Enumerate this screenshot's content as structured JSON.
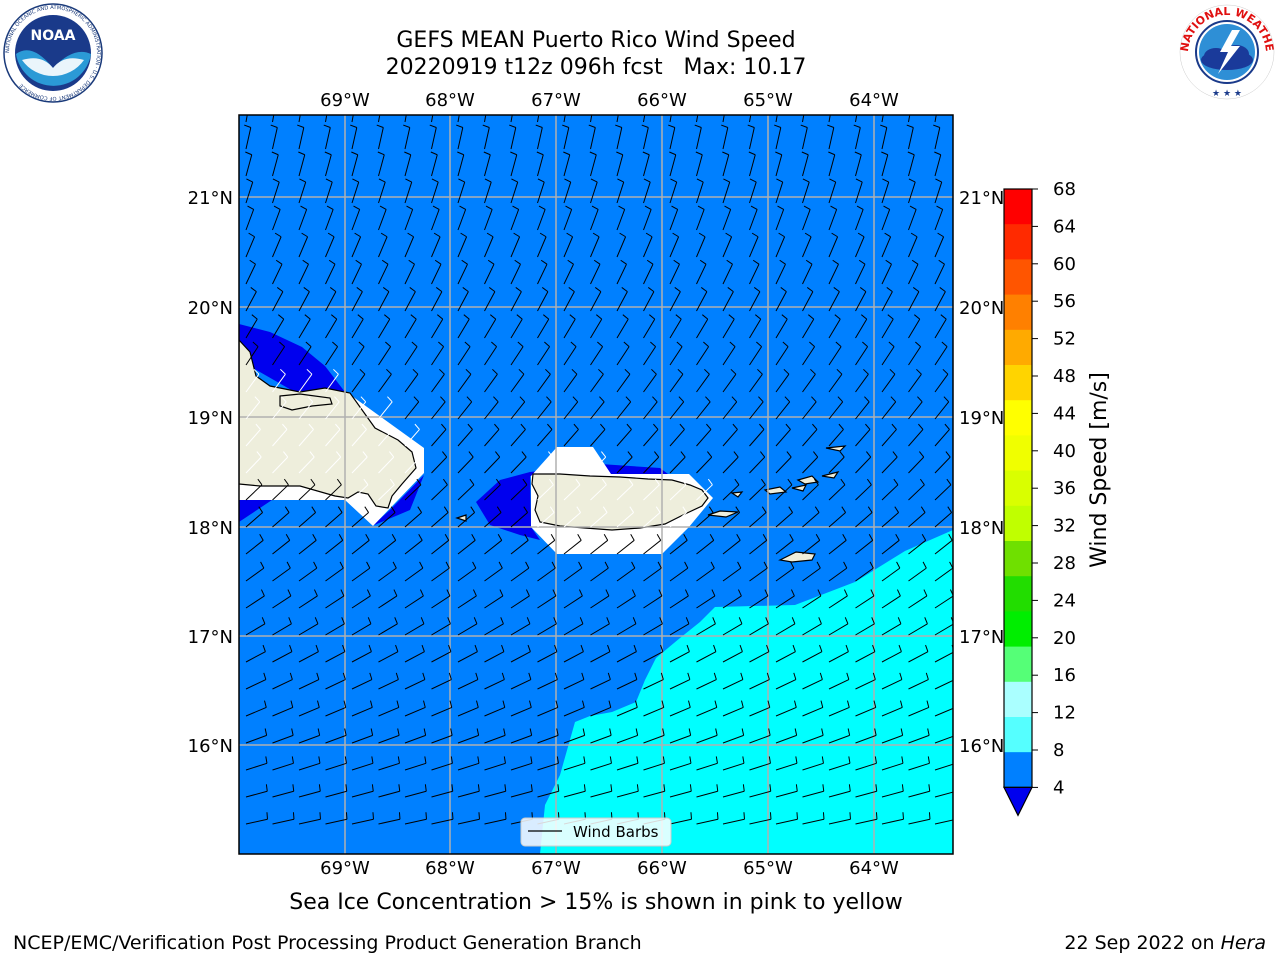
{
  "title": {
    "line1": "GEFS MEAN Puerto Rico Wind Speed",
    "line2": "20220919 t12z 096h fcst   Max: 10.17"
  },
  "logos": {
    "noaa_text": "NOAA",
    "noaa_ring_text": "NATIONAL OCEANIC AND ATMOSPHERIC ADMINISTRATION · U.S. DEPARTMENT OF COMMERCE",
    "nws_ring_text": "NATIONAL WEATHER SERVICE"
  },
  "map": {
    "lon_labels": [
      "69°W",
      "68°W",
      "67°W",
      "66°W",
      "65°W",
      "64°W"
    ],
    "lat_labels": [
      "21°N",
      "20°N",
      "19°N",
      "18°N",
      "17°N",
      "16°N"
    ],
    "legend_label": "Wind Barbs"
  },
  "colorbar": {
    "label": "Wind Speed [m/s]",
    "ticks": [
      "68",
      "64",
      "60",
      "56",
      "52",
      "48",
      "44",
      "40",
      "36",
      "32",
      "28",
      "24",
      "20",
      "16",
      "12",
      "8",
      "4"
    ],
    "colors": [
      "#ff0000",
      "#ff2a00",
      "#ff5500",
      "#ff8000",
      "#ffaa00",
      "#ffd400",
      "#ffff00",
      "#f0ff00",
      "#d9ff00",
      "#c0ff00",
      "#6fe000",
      "#22dd00",
      "#00ee00",
      "#55ff77",
      "#aaffff",
      "#55ffff",
      "#00ffff",
      "#0080ff"
    ],
    "under_color": "#0000ee"
  },
  "colors": {
    "ocean_4_8": "#0080ff",
    "ocean_8_12": "#00ffff",
    "ocean_under_4": "#0000ee",
    "land": "#eeeedc"
  },
  "footer": {
    "sea_ice": "Sea Ice Concentration > 15% is shown in pink to yellow",
    "credit": "NCEP/EMC/Verification Post Processing Product Generation Branch",
    "date": "22 Sep 2022 on ",
    "machine": "Hera"
  }
}
